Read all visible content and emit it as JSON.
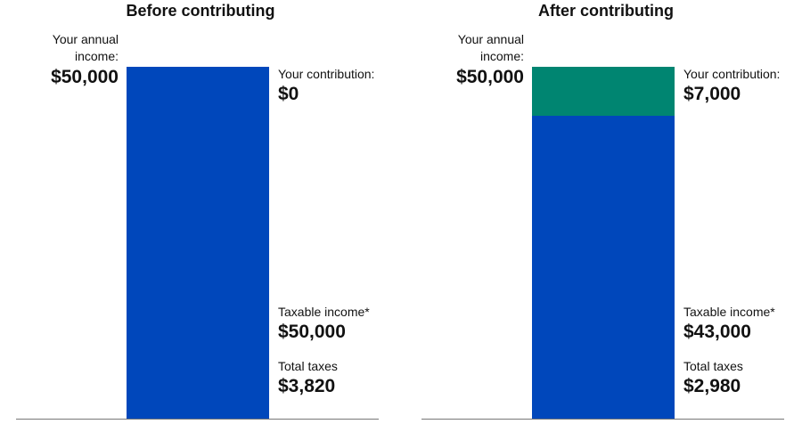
{
  "chart_data": [
    {
      "type": "bar",
      "stacked": true,
      "title": "Before contributing",
      "ylim": [
        0,
        50000
      ],
      "income_label": "Your annual income:",
      "income_value": "$50,000",
      "segments": [
        {
          "name": "Taxable income",
          "value": 50000,
          "color": "#0047BB"
        },
        {
          "name": "Contribution",
          "value": 0,
          "color": "#008571"
        }
      ],
      "contribution_label": "Your contribution:",
      "contribution_value": "$0",
      "taxable_label": "Taxable income*",
      "taxable_value": "$50,000",
      "taxes_label": "Total taxes",
      "taxes_value": "$3,820"
    },
    {
      "type": "bar",
      "stacked": true,
      "title": "After contributing",
      "ylim": [
        0,
        50000
      ],
      "income_label": "Your annual income:",
      "income_value": "$50,000",
      "segments": [
        {
          "name": "Taxable income",
          "value": 43000,
          "color": "#0047BB"
        },
        {
          "name": "Contribution",
          "value": 7000,
          "color": "#008571"
        }
      ],
      "contribution_label": "Your contribution:",
      "contribution_value": "$7,000",
      "taxable_label": "Taxable income*",
      "taxable_value": "$43,000",
      "taxes_label": "Total taxes",
      "taxes_value": "$2,980"
    }
  ]
}
